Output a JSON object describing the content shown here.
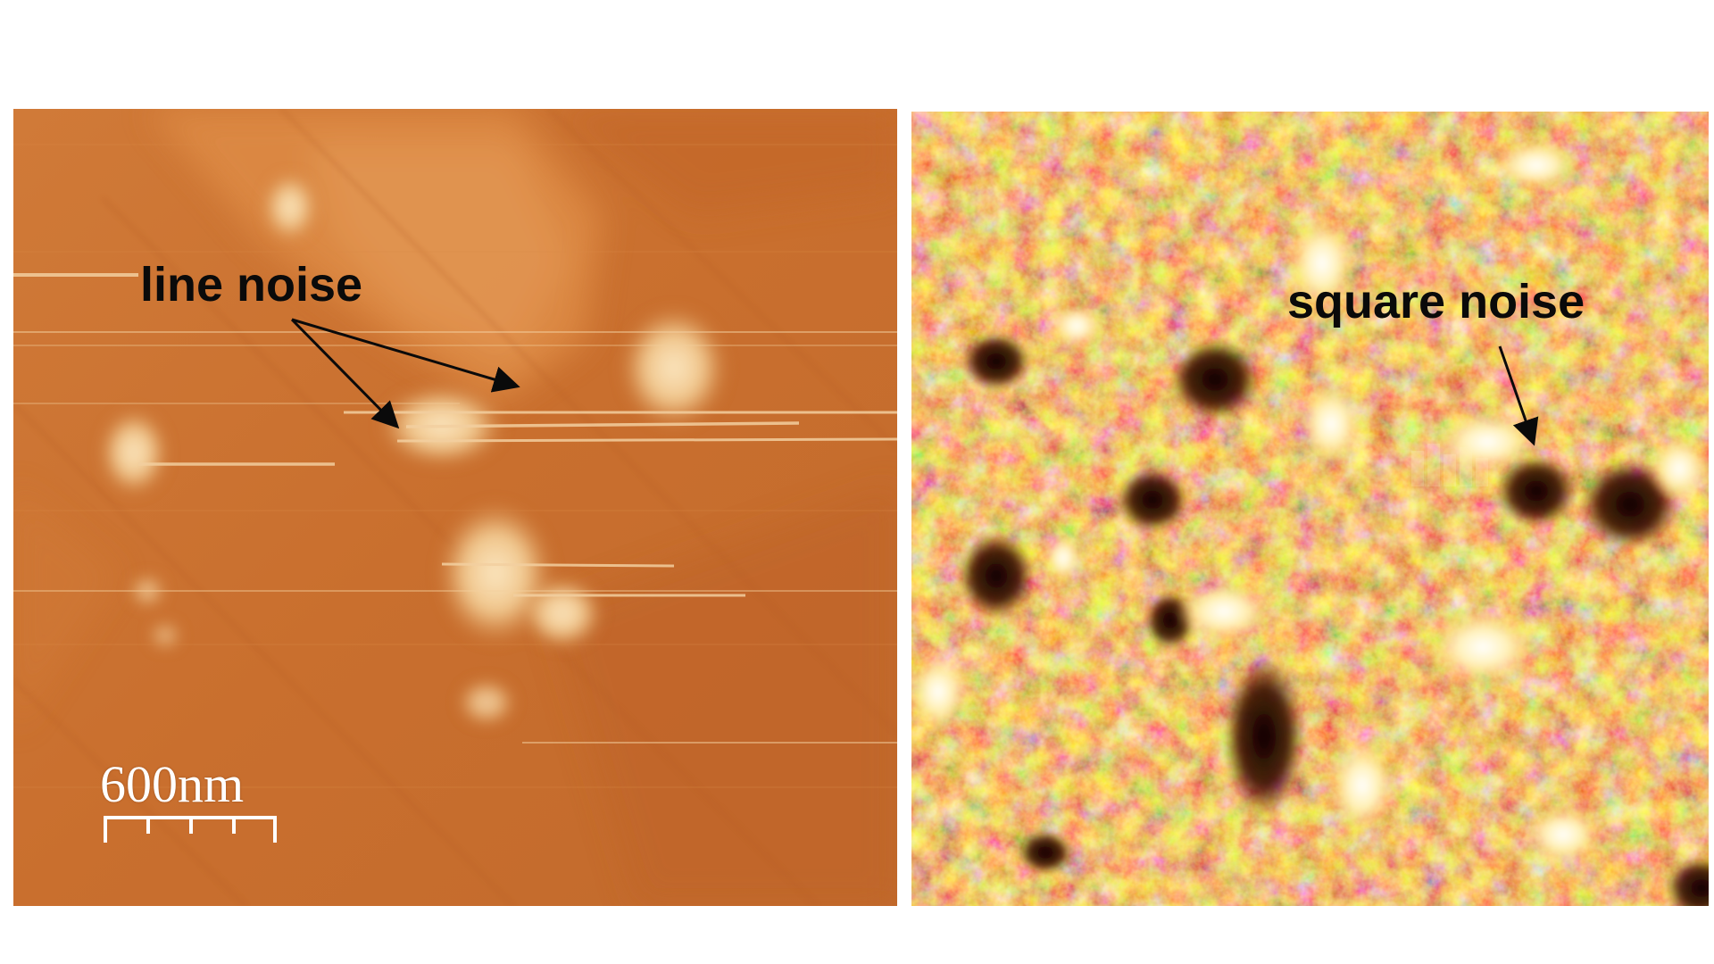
{
  "annotations": {
    "line_noise": "line noise",
    "square_noise": "square noise"
  },
  "scale_bar": {
    "text": "600nm"
  },
  "colors": {
    "background": "#ffffff",
    "left_base": "#c96f2e",
    "left_highlight": "#f7dcae",
    "right_dark": "#1a0502",
    "right_mid": "#c4561a",
    "right_bright": "#ffe08a",
    "right_white": "#ffffff",
    "annotation_text": "#0a0a0a",
    "scale_bar": "#ffffff"
  },
  "icons": {
    "arrow": "arrow-icon"
  }
}
